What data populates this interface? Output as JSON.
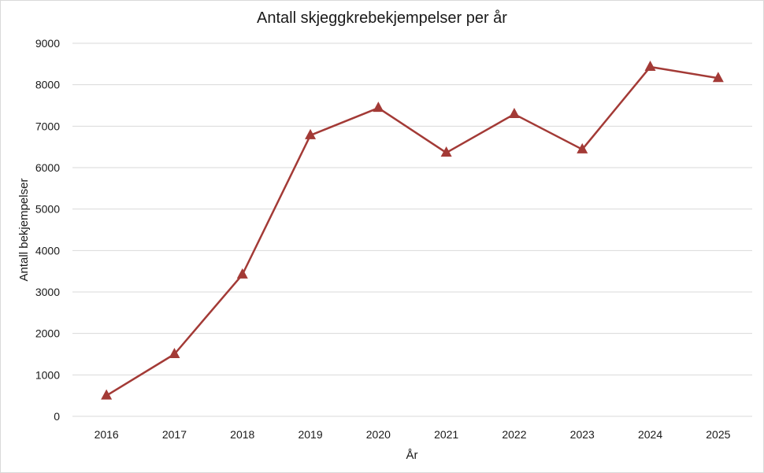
{
  "chart_data": {
    "type": "line",
    "title": "Antall skjeggkrebekjempelser per år",
    "xlabel": "År",
    "ylabel": "Antall bekjempelser",
    "categories": [
      "2016",
      "2017",
      "2018",
      "2019",
      "2020",
      "2021",
      "2022",
      "2023",
      "2024",
      "2025"
    ],
    "series": [
      {
        "name": "Antall bekjempelser",
        "values": [
          500,
          1500,
          3420,
          6780,
          7440,
          6360,
          7290,
          6440,
          8430,
          8160
        ],
        "color": "#a33a36",
        "marker": "triangle"
      }
    ],
    "ylim": [
      0,
      9000
    ],
    "yticks": [
      0,
      1000,
      2000,
      3000,
      4000,
      5000,
      6000,
      7000,
      8000,
      9000
    ],
    "grid": true,
    "gridColor": "#d9d9d9",
    "legend": "none"
  }
}
